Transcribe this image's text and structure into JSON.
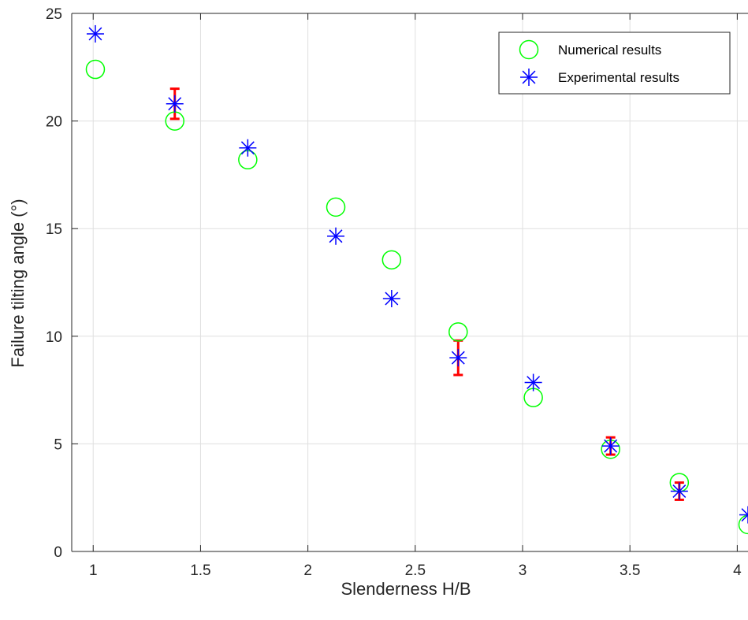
{
  "chart_data": {
    "type": "scatter",
    "title": "",
    "xlabel": "Slenderness H/B",
    "ylabel": "Failure tilting angle (°)",
    "xlim": [
      0.9,
      4.05
    ],
    "ylim": [
      0,
      25
    ],
    "xticks": [
      1,
      1.5,
      2,
      2.5,
      3,
      3.5,
      4
    ],
    "yticks": [
      0,
      5,
      10,
      15,
      20,
      25
    ],
    "xtick_labels": [
      "1",
      "1.5",
      "2",
      "2.5",
      "3",
      "3.5",
      "4"
    ],
    "ytick_labels": [
      "0",
      "5",
      "10",
      "15",
      "20",
      "25"
    ],
    "grid": true,
    "legend_position": "top-right",
    "series": [
      {
        "name": "Numerical results",
        "marker": "circle",
        "color": "#00ff00",
        "x": [
          1.01,
          1.38,
          1.72,
          2.13,
          2.39,
          2.7,
          3.05,
          3.41,
          3.73,
          4.05
        ],
        "y": [
          22.4,
          20.0,
          18.2,
          16.0,
          13.55,
          10.2,
          7.15,
          4.75,
          3.2,
          1.25
        ]
      },
      {
        "name": "Experimental results",
        "marker": "asterisk",
        "color": "#0000ff",
        "x": [
          1.01,
          1.38,
          1.72,
          2.13,
          2.39,
          2.7,
          3.05,
          3.41,
          3.73,
          4.05
        ],
        "y": [
          24.05,
          20.8,
          18.75,
          14.65,
          11.75,
          9.0,
          7.85,
          4.9,
          2.8,
          1.7
        ]
      }
    ],
    "error_bars": {
      "color": "#ff0000",
      "x": [
        1.38,
        2.7,
        3.41,
        3.73
      ],
      "y": [
        20.8,
        9.0,
        4.9,
        2.8
      ],
      "lower": [
        20.1,
        8.2,
        4.5,
        2.4
      ],
      "upper": [
        21.5,
        9.8,
        5.3,
        3.2
      ]
    }
  }
}
